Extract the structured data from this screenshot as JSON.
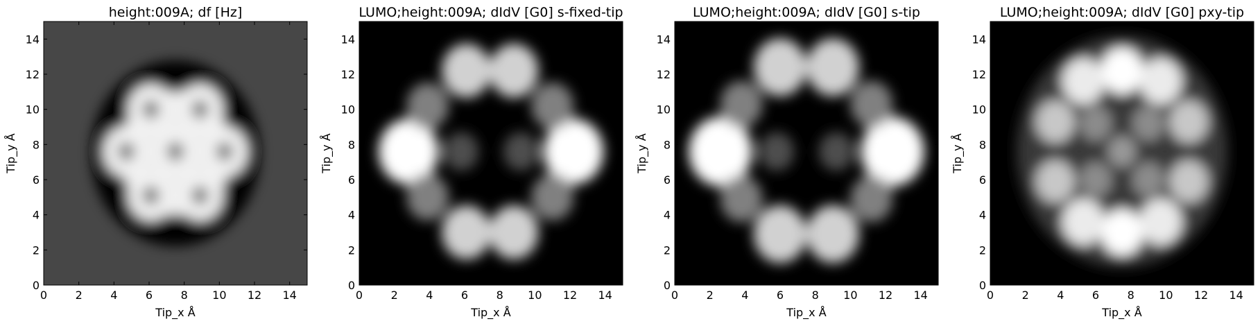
{
  "chart_data": [
    {
      "type": "heatmap",
      "title": "height:009A; df [Hz]",
      "xlabel": "Tip_x Å",
      "ylabel": "Tip_y Å",
      "xlim": [
        0,
        15
      ],
      "ylim": [
        0,
        15
      ],
      "xticks": [
        "0",
        "2",
        "4",
        "6",
        "8",
        "10",
        "12",
        "14"
      ],
      "yticks": [
        "0",
        "2",
        "4",
        "6",
        "8",
        "10",
        "12",
        "14"
      ],
      "colormap": "gray",
      "background": "#474747",
      "features": [
        {
          "x": 7.5,
          "y": 7.5,
          "r": 4.8,
          "value": 0.0
        },
        {
          "x": 7.5,
          "y": 7.5,
          "r": 3.2,
          "value": 0.92
        },
        {
          "x": 6.1,
          "y": 10.0,
          "r": 1.3,
          "value": 0.95
        },
        {
          "x": 8.9,
          "y": 10.0,
          "r": 1.3,
          "value": 0.95
        },
        {
          "x": 4.7,
          "y": 7.6,
          "r": 1.3,
          "value": 0.95
        },
        {
          "x": 10.3,
          "y": 7.6,
          "r": 1.3,
          "value": 0.95
        },
        {
          "x": 6.1,
          "y": 5.1,
          "r": 1.3,
          "value": 0.95
        },
        {
          "x": 8.9,
          "y": 5.1,
          "r": 1.3,
          "value": 0.95
        },
        {
          "x": 7.5,
          "y": 7.6,
          "r": 1.3,
          "value": 0.95
        },
        {
          "x": 6.1,
          "y": 10.0,
          "r": 0.5,
          "value": 0.5
        },
        {
          "x": 8.9,
          "y": 10.0,
          "r": 0.5,
          "value": 0.5
        },
        {
          "x": 4.7,
          "y": 7.6,
          "r": 0.5,
          "value": 0.5
        },
        {
          "x": 7.5,
          "y": 7.6,
          "r": 0.5,
          "value": 0.5
        },
        {
          "x": 10.3,
          "y": 7.6,
          "r": 0.5,
          "value": 0.5
        },
        {
          "x": 6.1,
          "y": 5.1,
          "r": 0.5,
          "value": 0.5
        },
        {
          "x": 8.9,
          "y": 5.1,
          "r": 0.5,
          "value": 0.5
        }
      ]
    },
    {
      "type": "heatmap",
      "title": "LUMO;height:009A; dIdV [G0] s-fixed-tip",
      "xlabel": "Tip_x Å",
      "ylabel": "Tip_y Å",
      "xlim": [
        0,
        15
      ],
      "ylim": [
        0,
        15
      ],
      "xticks": [
        "0",
        "2",
        "4",
        "6",
        "8",
        "10",
        "12",
        "14"
      ],
      "yticks": [
        "0",
        "2",
        "4",
        "6",
        "8",
        "10",
        "12",
        "14"
      ],
      "colormap": "gray",
      "background": "#000000",
      "features": [
        {
          "x": 2.8,
          "y": 7.6,
          "r": 1.7,
          "value": 1.0
        },
        {
          "x": 12.2,
          "y": 7.6,
          "r": 1.7,
          "value": 1.0
        },
        {
          "x": 6.1,
          "y": 12.2,
          "r": 1.4,
          "value": 0.82
        },
        {
          "x": 8.8,
          "y": 12.2,
          "r": 1.4,
          "value": 0.82
        },
        {
          "x": 6.1,
          "y": 3.0,
          "r": 1.4,
          "value": 0.82
        },
        {
          "x": 8.8,
          "y": 3.0,
          "r": 1.4,
          "value": 0.82
        },
        {
          "x": 3.9,
          "y": 10.2,
          "r": 1.2,
          "value": 0.5
        },
        {
          "x": 11.0,
          "y": 10.2,
          "r": 1.2,
          "value": 0.5
        },
        {
          "x": 3.9,
          "y": 5.0,
          "r": 1.2,
          "value": 0.5
        },
        {
          "x": 11.0,
          "y": 5.0,
          "r": 1.2,
          "value": 0.5
        },
        {
          "x": 5.8,
          "y": 7.6,
          "r": 1.0,
          "value": 0.3
        },
        {
          "x": 9.2,
          "y": 7.6,
          "r": 1.0,
          "value": 0.3
        }
      ]
    },
    {
      "type": "heatmap",
      "title": "LUMO;height:009A; dIdV [G0] s-tip",
      "xlabel": "Tip_x Å",
      "ylabel": "Tip_y Å",
      "xlim": [
        0,
        15
      ],
      "ylim": [
        0,
        15
      ],
      "xticks": [
        "0",
        "2",
        "4",
        "6",
        "8",
        "10",
        "12",
        "14"
      ],
      "yticks": [
        "0",
        "2",
        "4",
        "6",
        "8",
        "10",
        "12",
        "14"
      ],
      "colormap": "gray",
      "background": "#000000",
      "features": [
        {
          "x": 2.6,
          "y": 7.6,
          "r": 1.8,
          "value": 1.0
        },
        {
          "x": 12.4,
          "y": 7.6,
          "r": 1.8,
          "value": 1.0
        },
        {
          "x": 6.0,
          "y": 12.4,
          "r": 1.5,
          "value": 0.82
        },
        {
          "x": 9.0,
          "y": 12.4,
          "r": 1.5,
          "value": 0.82
        },
        {
          "x": 6.0,
          "y": 2.9,
          "r": 1.5,
          "value": 0.82
        },
        {
          "x": 9.0,
          "y": 2.9,
          "r": 1.5,
          "value": 0.82
        },
        {
          "x": 3.8,
          "y": 10.3,
          "r": 1.2,
          "value": 0.5
        },
        {
          "x": 11.2,
          "y": 10.3,
          "r": 1.2,
          "value": 0.5
        },
        {
          "x": 3.8,
          "y": 4.9,
          "r": 1.2,
          "value": 0.5
        },
        {
          "x": 11.2,
          "y": 4.9,
          "r": 1.2,
          "value": 0.5
        },
        {
          "x": 5.8,
          "y": 7.6,
          "r": 1.0,
          "value": 0.3
        },
        {
          "x": 9.2,
          "y": 7.6,
          "r": 1.0,
          "value": 0.3
        }
      ]
    },
    {
      "type": "heatmap",
      "title": "LUMO;height:009A; dIdV [G0] pxy-tip",
      "xlabel": "Tip_x Å",
      "ylabel": "Tip_y Å",
      "xlim": [
        0,
        15
      ],
      "ylim": [
        0,
        15
      ],
      "xticks": [
        "0",
        "2",
        "4",
        "6",
        "8",
        "10",
        "12",
        "14"
      ],
      "yticks": [
        "0",
        "2",
        "4",
        "6",
        "8",
        "10",
        "12",
        "14"
      ],
      "colormap": "gray",
      "background": "#000000",
      "features": [
        {
          "x": 7.5,
          "y": 7.6,
          "r": 6.0,
          "value": 0.22
        },
        {
          "x": 7.5,
          "y": 12.2,
          "r": 1.2,
          "value": 1.0
        },
        {
          "x": 7.5,
          "y": 3.0,
          "r": 1.2,
          "value": 1.0
        },
        {
          "x": 5.3,
          "y": 11.6,
          "r": 1.2,
          "value": 0.92
        },
        {
          "x": 9.7,
          "y": 11.6,
          "r": 1.2,
          "value": 0.92
        },
        {
          "x": 5.3,
          "y": 3.6,
          "r": 1.2,
          "value": 0.92
        },
        {
          "x": 9.7,
          "y": 3.6,
          "r": 1.2,
          "value": 0.92
        },
        {
          "x": 3.7,
          "y": 9.3,
          "r": 1.1,
          "value": 0.78
        },
        {
          "x": 11.3,
          "y": 9.3,
          "r": 1.1,
          "value": 0.78
        },
        {
          "x": 3.7,
          "y": 5.9,
          "r": 1.1,
          "value": 0.78
        },
        {
          "x": 11.3,
          "y": 5.9,
          "r": 1.1,
          "value": 0.78
        },
        {
          "x": 6.0,
          "y": 9.2,
          "r": 0.9,
          "value": 0.55
        },
        {
          "x": 9.0,
          "y": 9.2,
          "r": 0.9,
          "value": 0.55
        },
        {
          "x": 6.0,
          "y": 6.0,
          "r": 0.9,
          "value": 0.55
        },
        {
          "x": 9.0,
          "y": 6.0,
          "r": 0.9,
          "value": 0.55
        },
        {
          "x": 7.5,
          "y": 7.6,
          "r": 0.8,
          "value": 0.6
        }
      ]
    }
  ]
}
